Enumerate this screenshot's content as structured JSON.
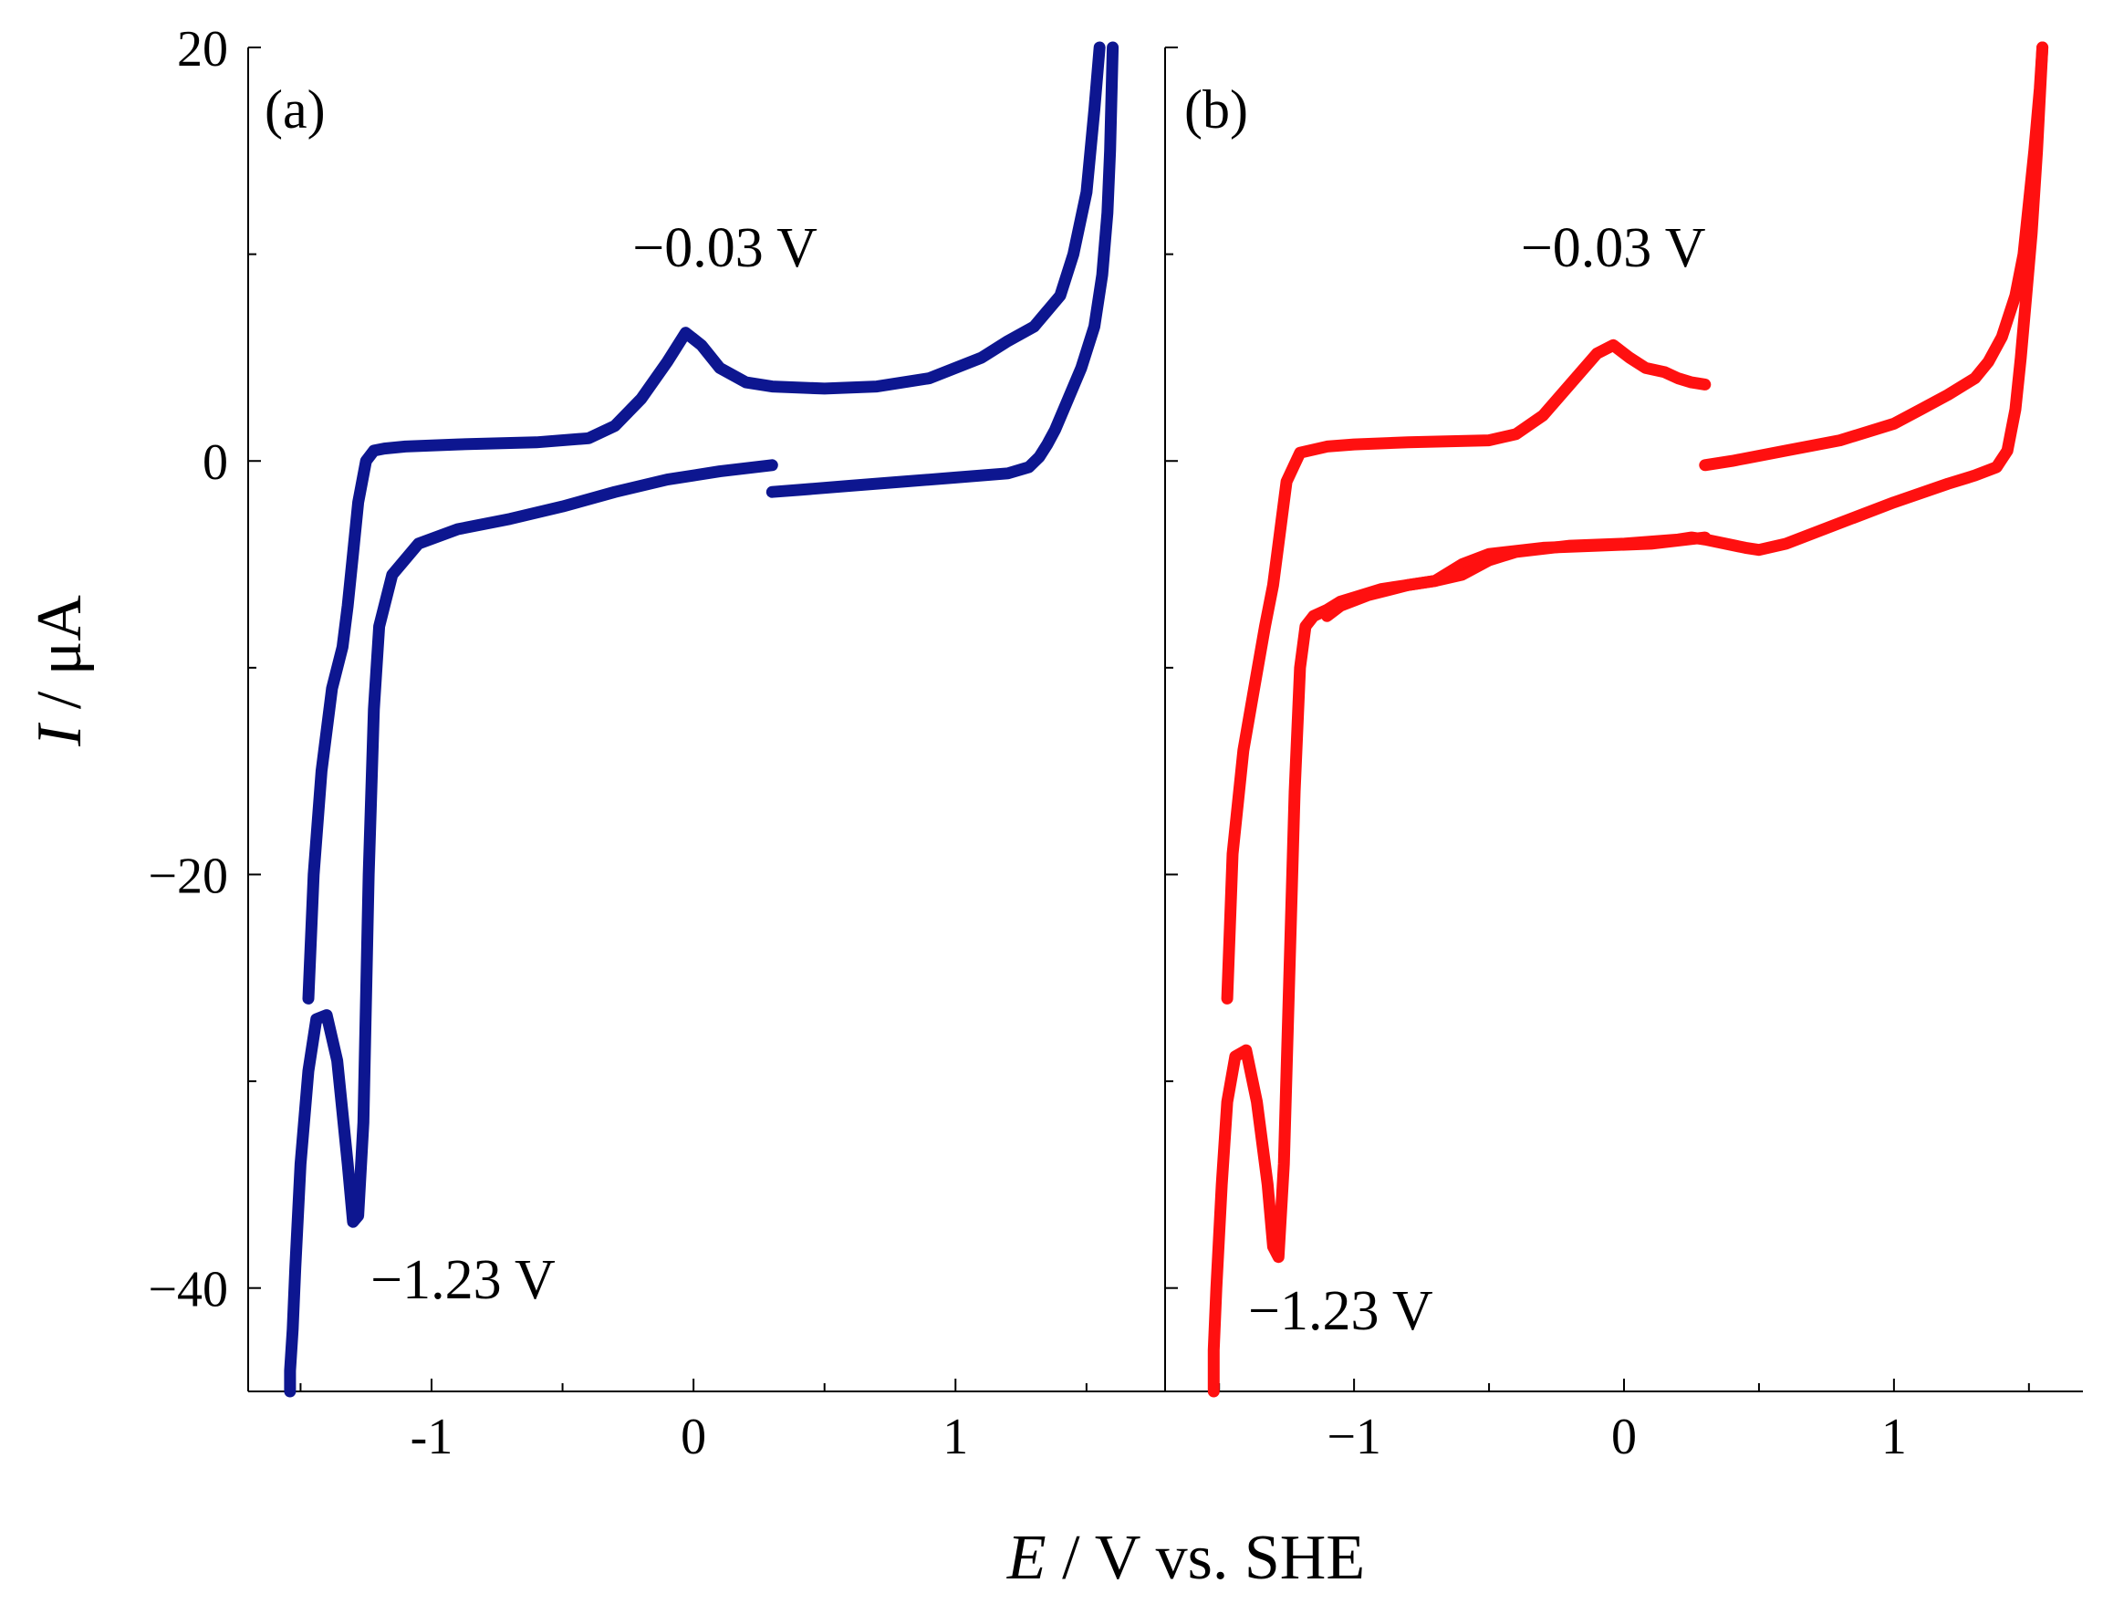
{
  "chart_data": [
    {
      "type": "line",
      "panel_label": "(a)",
      "color": "#0d1690",
      "xlim": [
        -1.7,
        1.8
      ],
      "ylim": [
        -45,
        20
      ],
      "x_ticks": [
        -1,
        0,
        1
      ],
      "x_tick_labels": [
        "-1",
        "0",
        "1"
      ],
      "y_ticks": [
        20,
        0,
        -20,
        -40
      ],
      "y_tick_labels": [
        "20",
        "0",
        "−20",
        "−40"
      ],
      "xlabel_italic": "E",
      "xlabel_rest": " / V vs. SHE",
      "ylabel_italic": "I",
      "ylabel_rest": " / μA",
      "annotations": [
        {
          "text": "−0.03 V",
          "x": 0.12,
          "y": 9.4
        },
        {
          "text": "−1.23 V",
          "x": -0.88,
          "y": -40.5
        }
      ],
      "series": [
        {
          "name": "segment-1",
          "x": [
            0.3,
            0.1,
            -0.1,
            -0.3,
            -0.5,
            -0.7,
            -0.9,
            -1.05,
            -1.15,
            -1.2,
            -1.22,
            -1.24,
            -1.26,
            -1.28,
            -1.3,
            -1.32,
            -1.36,
            -1.4,
            -1.44,
            -1.47,
            -1.5,
            -1.52,
            -1.53,
            -1.54,
            -1.54
          ],
          "y": [
            -0.2,
            -0.5,
            -0.9,
            -1.5,
            -2.2,
            -2.8,
            -3.3,
            -4.0,
            -5.5,
            -8.0,
            -12.0,
            -20.0,
            -32.0,
            -36.5,
            -36.8,
            -34.0,
            -29.0,
            -26.8,
            -27.0,
            -29.5,
            -34.0,
            -39.0,
            -42.0,
            -44.0,
            -45.0
          ]
        },
        {
          "name": "segment-2",
          "x": [
            -1.47,
            -1.45,
            -1.42,
            -1.38,
            -1.34,
            -1.32,
            -1.3,
            -1.28,
            -1.25,
            -1.22,
            -1.18,
            -1.1,
            -0.9,
            -0.6,
            -0.4,
            -0.3,
            -0.2,
            -0.1,
            -0.03,
            0.03,
            0.1,
            0.2,
            0.3,
            0.5,
            0.7,
            0.9,
            1.1,
            1.2,
            1.3,
            1.4,
            1.45,
            1.5,
            1.53,
            1.55
          ],
          "y": [
            -26.0,
            -20.0,
            -15.0,
            -11.0,
            -9.0,
            -7.0,
            -4.5,
            -2.0,
            0.0,
            0.5,
            0.6,
            0.7,
            0.8,
            0.9,
            1.1,
            1.7,
            3.0,
            4.8,
            6.2,
            5.6,
            4.5,
            3.8,
            3.6,
            3.5,
            3.6,
            4.0,
            5.0,
            5.8,
            6.5,
            8.0,
            10.0,
            13.0,
            17.0,
            20.0
          ]
        },
        {
          "name": "segment-3",
          "x": [
            1.6,
            1.59,
            1.58,
            1.56,
            1.53,
            1.48,
            1.43,
            1.38,
            1.35,
            1.32,
            1.28,
            1.2,
            1.0,
            0.8,
            0.6,
            0.4,
            0.3
          ],
          "y": [
            20.0,
            15.0,
            12.0,
            9.0,
            6.5,
            4.5,
            3.0,
            1.5,
            0.8,
            0.2,
            -0.3,
            -0.6,
            -0.8,
            -1.0,
            -1.2,
            -1.4,
            -1.5
          ]
        }
      ]
    },
    {
      "type": "line",
      "panel_label": "(b)",
      "color": "#ff1010",
      "xlim": [
        -1.7,
        1.7
      ],
      "ylim": [
        -45,
        20
      ],
      "x_ticks": [
        -1,
        0,
        1
      ],
      "x_tick_labels": [
        "−1",
        "0",
        "1"
      ],
      "y_ticks": [
        20,
        0,
        -20,
        -40
      ],
      "y_tick_labels": [],
      "annotations": [
        {
          "text": "−0.03 V",
          "x": -0.04,
          "y": 9.4
        },
        {
          "text": "−1.23 V",
          "x": -1.05,
          "y": -42.0
        }
      ],
      "series": [
        {
          "name": "segment-1",
          "x": [
            0.3,
            0.1,
            -0.1,
            -0.3,
            -0.5,
            -0.6,
            -0.7,
            -0.9,
            -1.0,
            -1.05,
            -1.1,
            -1.15,
            -1.18,
            -1.2,
            -1.22,
            -1.24,
            -1.26,
            -1.28,
            -1.3,
            -1.32,
            -1.36,
            -1.4,
            -1.44,
            -1.47,
            -1.49,
            -1.51,
            -1.52,
            -1.52
          ],
          "y": [
            -3.7,
            -4.0,
            -4.1,
            -4.2,
            -4.5,
            -5.0,
            -5.8,
            -6.2,
            -6.6,
            -6.8,
            -7.2,
            -7.5,
            -8.0,
            -10.0,
            -16.0,
            -25.0,
            -34.0,
            -38.5,
            -38.0,
            -35.0,
            -31.0,
            -28.5,
            -28.8,
            -31.0,
            -35.0,
            -40.0,
            -43.0,
            -45.0
          ]
        },
        {
          "name": "segment-2",
          "x": [
            -1.47,
            -1.45,
            -1.41,
            -1.37,
            -1.33,
            -1.3,
            -1.28,
            -1.25,
            -1.2,
            -1.1,
            -1.0,
            -0.8,
            -0.5,
            -0.4,
            -0.3,
            -0.2,
            -0.1,
            -0.04,
            0.02,
            0.08,
            0.15,
            0.2,
            0.25,
            0.3
          ],
          "y": [
            -26.0,
            -19.0,
            -14.0,
            -11.0,
            -8.0,
            -6.0,
            -4.0,
            -1.0,
            0.4,
            0.7,
            0.8,
            0.9,
            1.0,
            1.3,
            2.2,
            3.7,
            5.2,
            5.6,
            5.0,
            4.5,
            4.3,
            4.0,
            3.8,
            3.7
          ]
        },
        {
          "name": "segment-3",
          "x": [
            0.3,
            0.4,
            0.6,
            0.8,
            1.0,
            1.1,
            1.2,
            1.3,
            1.35,
            1.4,
            1.45,
            1.48,
            1.5,
            1.52,
            1.54,
            1.55
          ],
          "y": [
            -0.2,
            0.0,
            0.5,
            1.0,
            1.8,
            2.5,
            3.2,
            4.0,
            4.8,
            6.0,
            8.0,
            10.0,
            12.5,
            15.0,
            18.0,
            20.0
          ]
        },
        {
          "name": "segment-4",
          "x": [
            1.55,
            1.53,
            1.51,
            1.49,
            1.47,
            1.45,
            1.42,
            1.38,
            1.3,
            1.2,
            1.0,
            0.8,
            0.6,
            0.5,
            0.45,
            0.3,
            0.25,
            0.2,
            0.0,
            -0.2,
            -0.4,
            -0.5,
            -0.6,
            -0.7,
            -0.8,
            -0.95,
            -1.05,
            -1.1
          ],
          "y": [
            20.0,
            15.0,
            11.0,
            8.0,
            5.0,
            2.5,
            0.5,
            -0.3,
            -0.7,
            -1.1,
            -2.0,
            -3.0,
            -4.0,
            -4.3,
            -4.2,
            -3.8,
            -3.7,
            -3.8,
            -4.0,
            -4.1,
            -4.4,
            -4.8,
            -5.5,
            -5.8,
            -6.0,
            -6.5,
            -7.0,
            -7.5
          ]
        }
      ]
    }
  ]
}
